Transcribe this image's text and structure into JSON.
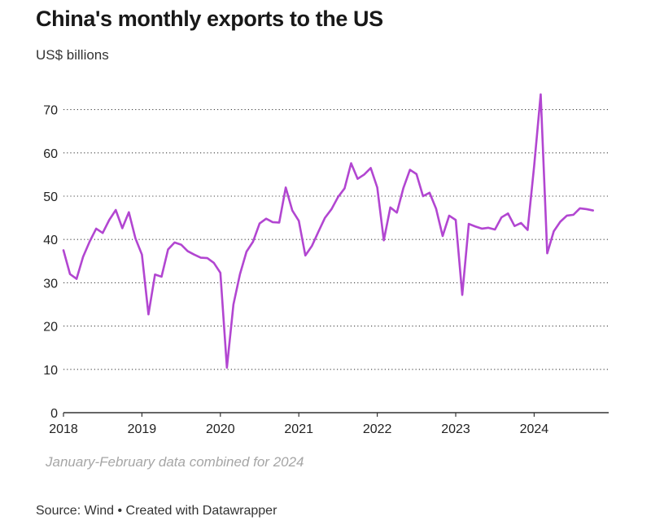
{
  "chart_data": {
    "type": "line",
    "title": "China's monthly exports to the US",
    "subtitle": "US$ billions",
    "note": "January-February data combined for 2024",
    "source": "Source: Wind • Created with Datawrapper",
    "line_color": "#b246d1",
    "grid": "dotted horizontal",
    "xlim": [
      2018.0,
      2024.95
    ],
    "ylim": [
      0,
      75
    ],
    "x_ticks": [
      2018,
      2019,
      2020,
      2021,
      2022,
      2023,
      2024
    ],
    "y_ticks": [
      0,
      10,
      20,
      30,
      40,
      50,
      60,
      70
    ],
    "series": [
      {
        "points": [
          [
            "2018-01",
            37.5
          ],
          [
            "2018-02",
            32.0
          ],
          [
            "2018-03",
            30.9
          ],
          [
            "2018-04",
            36.0
          ],
          [
            "2018-05",
            39.5
          ],
          [
            "2018-06",
            42.5
          ],
          [
            "2018-07",
            41.5
          ],
          [
            "2018-08",
            44.5
          ],
          [
            "2018-09",
            46.8
          ],
          [
            "2018-10",
            42.6
          ],
          [
            "2018-11",
            46.3
          ],
          [
            "2018-12",
            40.3
          ],
          [
            "2019-01",
            36.5
          ],
          [
            "2019-02",
            22.7
          ],
          [
            "2019-03",
            31.9
          ],
          [
            "2019-04",
            31.4
          ],
          [
            "2019-05",
            37.7
          ],
          [
            "2019-06",
            39.3
          ],
          [
            "2019-07",
            38.8
          ],
          [
            "2019-08",
            37.3
          ],
          [
            "2019-09",
            36.5
          ],
          [
            "2019-10",
            35.8
          ],
          [
            "2019-11",
            35.7
          ],
          [
            "2019-12",
            34.6
          ],
          [
            "2020-01",
            32.3
          ],
          [
            "2020-02",
            10.4
          ],
          [
            "2020-03",
            25.0
          ],
          [
            "2020-04",
            32.0
          ],
          [
            "2020-05",
            37.2
          ],
          [
            "2020-06",
            39.5
          ],
          [
            "2020-07",
            43.7
          ],
          [
            "2020-08",
            44.8
          ],
          [
            "2020-09",
            44.0
          ],
          [
            "2020-10",
            43.9
          ],
          [
            "2020-11",
            52.0
          ],
          [
            "2020-12",
            46.7
          ],
          [
            "2021-01",
            44.3
          ],
          [
            "2021-02",
            36.3
          ],
          [
            "2021-03",
            38.5
          ],
          [
            "2021-04",
            41.8
          ],
          [
            "2021-05",
            45.0
          ],
          [
            "2021-06",
            47.0
          ],
          [
            "2021-07",
            49.8
          ],
          [
            "2021-08",
            51.8
          ],
          [
            "2021-09",
            57.6
          ],
          [
            "2021-10",
            54.0
          ],
          [
            "2021-11",
            55.0
          ],
          [
            "2021-12",
            56.5
          ],
          [
            "2022-01",
            52.0
          ],
          [
            "2022-02",
            39.8
          ],
          [
            "2022-03",
            47.4
          ],
          [
            "2022-04",
            46.2
          ],
          [
            "2022-05",
            51.9
          ],
          [
            "2022-06",
            56.1
          ],
          [
            "2022-07",
            55.1
          ],
          [
            "2022-08",
            50.0
          ],
          [
            "2022-09",
            50.8
          ],
          [
            "2022-10",
            47.1
          ],
          [
            "2022-11",
            40.8
          ],
          [
            "2022-12",
            45.5
          ],
          [
            "2023-01",
            44.5
          ],
          [
            "2023-02",
            27.2
          ],
          [
            "2023-03",
            43.6
          ],
          [
            "2023-04",
            43.0
          ],
          [
            "2023-05",
            42.5
          ],
          [
            "2023-06",
            42.7
          ],
          [
            "2023-07",
            42.3
          ],
          [
            "2023-08",
            45.1
          ],
          [
            "2023-09",
            46.0
          ],
          [
            "2023-10",
            43.1
          ],
          [
            "2023-11",
            43.8
          ],
          [
            "2023-12",
            42.2
          ],
          [
            "2024-01",
            57.0
          ],
          [
            "2024-02",
            73.5
          ],
          [
            "2024-03",
            36.8
          ],
          [
            "2024-04",
            41.9
          ],
          [
            "2024-05",
            44.1
          ],
          [
            "2024-06",
            45.5
          ],
          [
            "2024-07",
            45.7
          ],
          [
            "2024-08",
            47.2
          ],
          [
            "2024-09",
            47.0
          ],
          [
            "2024-10",
            46.7
          ]
        ]
      }
    ]
  }
}
